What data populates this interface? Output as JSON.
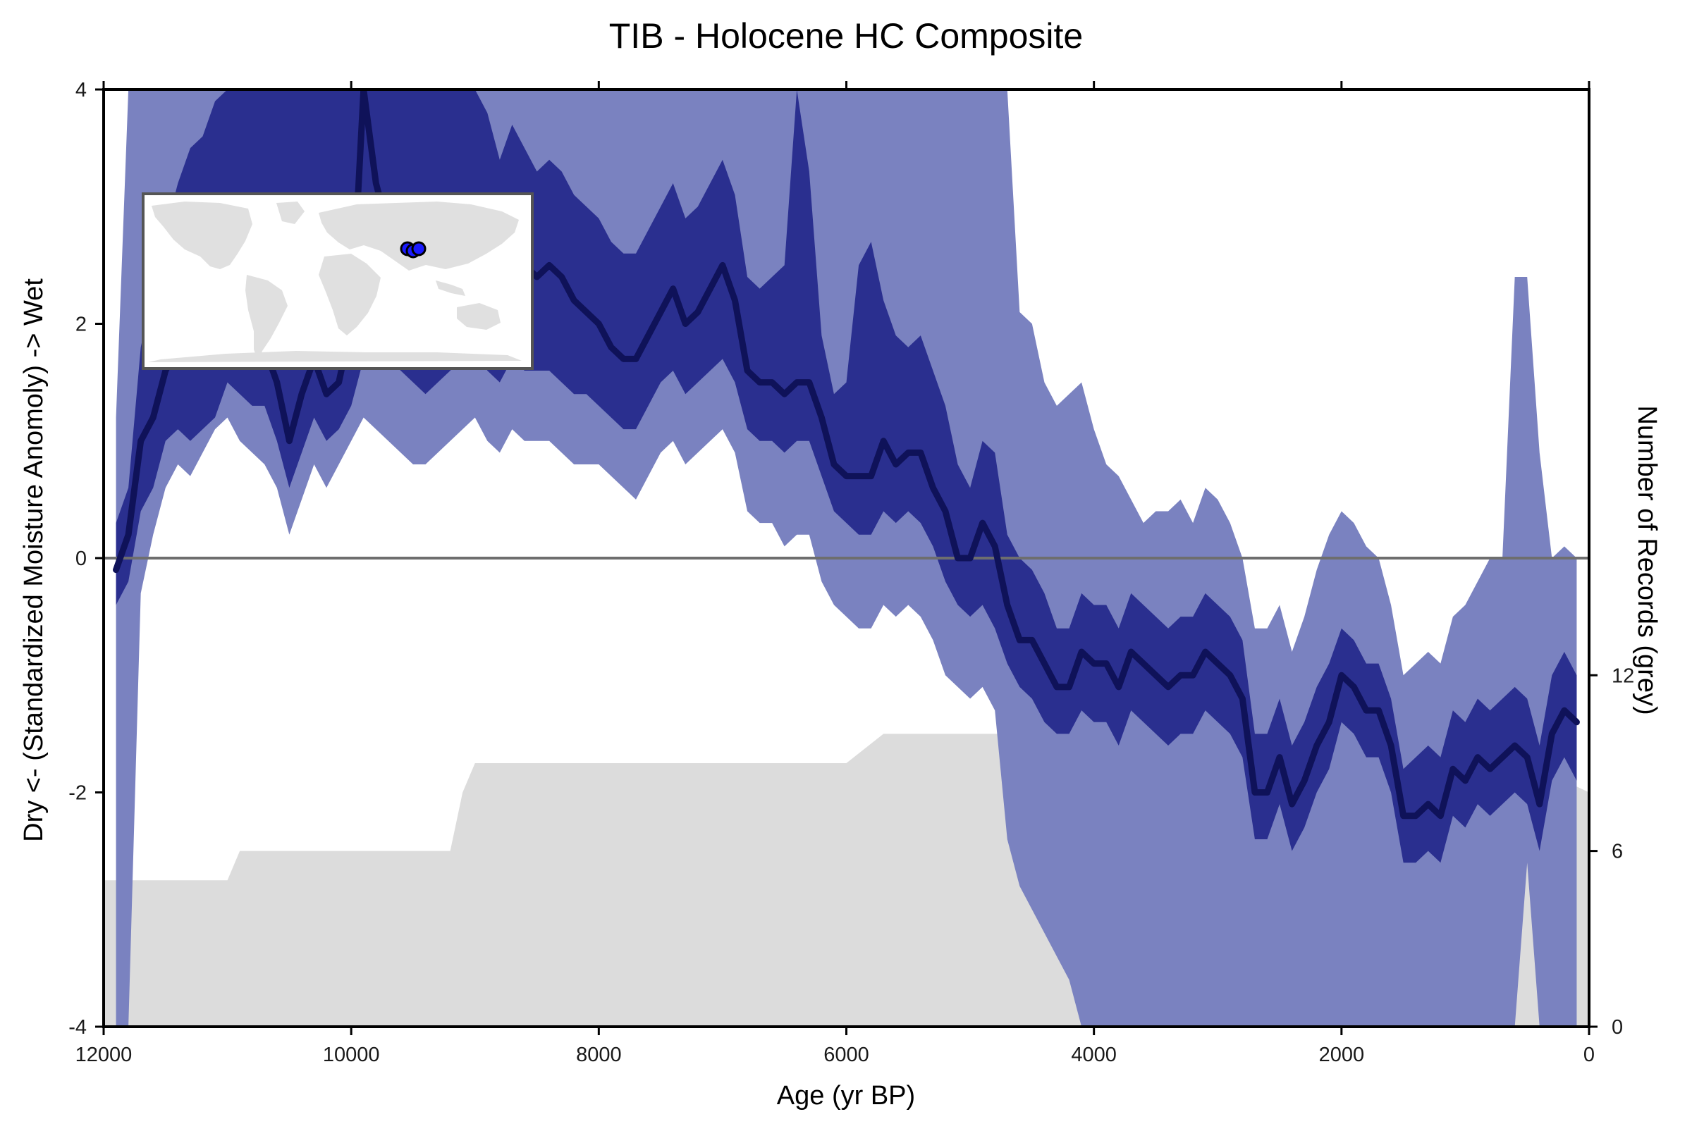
{
  "chart_data": {
    "type": "area",
    "title": "TIB - Holocene HC Composite",
    "xlabel": "Age (yr BP)",
    "ylabel": "Dry <- (Standardized Moisture Anomoly) -> Wet",
    "y2label": "Number of Records (grey)",
    "xlim": [
      12000,
      0
    ],
    "ylim": [
      -4,
      4
    ],
    "y2lim": [
      0,
      32
    ],
    "x_reversed": true,
    "x_ticks": [
      12000,
      10000,
      8000,
      6000,
      4000,
      2000,
      0
    ],
    "y_ticks": [
      -4,
      -2,
      0,
      2,
      4
    ],
    "y2_ticks": [
      0,
      6,
      12
    ],
    "zero_line": 0,
    "grid": false,
    "inset_map": {
      "position": "top-left",
      "site_count": 3,
      "site_color": "#1a1aff"
    },
    "colors": {
      "median": "#0f1259",
      "band_inner": "#2a2f8f",
      "band_outer": "#7a82c0",
      "records": "#dcdcdc",
      "zero_line": "#6e6e6e"
    },
    "records": {
      "name": "Number of Records (grey)",
      "x": [
        12000,
        11000,
        10900,
        9200,
        9100,
        9000,
        6000,
        5700,
        4000,
        3900,
        500,
        0
      ],
      "values": [
        5,
        5,
        6,
        6,
        8,
        9,
        9,
        10,
        10,
        9,
        9,
        8
      ]
    },
    "series": [
      {
        "name": "median",
        "x": [
          11900,
          11800,
          11700,
          11600,
          11500,
          11400,
          11300,
          11200,
          11100,
          11000,
          10900,
          10800,
          10700,
          10600,
          10500,
          10400,
          10300,
          10200,
          10100,
          10000,
          9900,
          9800,
          9700,
          9600,
          9500,
          9400,
          9300,
          9200,
          9100,
          9000,
          8900,
          8800,
          8700,
          8600,
          8500,
          8400,
          8300,
          8200,
          8100,
          8000,
          7900,
          7800,
          7700,
          7600,
          7500,
          7400,
          7300,
          7200,
          7100,
          7000,
          6900,
          6800,
          6700,
          6600,
          6500,
          6400,
          6300,
          6200,
          6100,
          6000,
          5900,
          5800,
          5700,
          5600,
          5500,
          5400,
          5300,
          5200,
          5100,
          5000,
          4900,
          4800,
          4700,
          4600,
          4500,
          4400,
          4300,
          4200,
          4100,
          4000,
          3900,
          3800,
          3700,
          3600,
          3500,
          3400,
          3300,
          3200,
          3100,
          3000,
          2900,
          2800,
          2700,
          2600,
          2500,
          2400,
          2300,
          2200,
          2100,
          2000,
          1900,
          1800,
          1700,
          1600,
          1500,
          1400,
          1300,
          1200,
          1100,
          1000,
          900,
          800,
          700,
          600,
          500,
          400,
          300,
          200,
          100
        ],
        "values": [
          -0.1,
          0.2,
          1.0,
          1.2,
          1.6,
          1.8,
          1.7,
          1.7,
          1.9,
          2.2,
          1.9,
          1.7,
          1.8,
          1.5,
          1.0,
          1.4,
          1.7,
          1.4,
          1.5,
          2.0,
          4.0,
          3.2,
          2.8,
          2.5,
          2.3,
          2.2,
          2.3,
          2.5,
          2.4,
          2.8,
          2.6,
          2.3,
          2.7,
          2.5,
          2.4,
          2.5,
          2.4,
          2.2,
          2.1,
          2.0,
          1.8,
          1.7,
          1.7,
          1.9,
          2.1,
          2.3,
          2.0,
          2.1,
          2.3,
          2.5,
          2.2,
          1.6,
          1.5,
          1.5,
          1.4,
          1.5,
          1.5,
          1.2,
          0.8,
          0.7,
          0.7,
          0.7,
          1.0,
          0.8,
          0.9,
          0.9,
          0.6,
          0.4,
          0.0,
          0.0,
          0.3,
          0.1,
          -0.4,
          -0.7,
          -0.7,
          -0.9,
          -1.1,
          -1.1,
          -0.8,
          -0.9,
          -0.9,
          -1.1,
          -0.8,
          -0.9,
          -1.0,
          -1.1,
          -1.0,
          -1.0,
          -0.8,
          -0.9,
          -1.0,
          -1.2,
          -2.0,
          -2.0,
          -1.7,
          -2.1,
          -1.9,
          -1.6,
          -1.4,
          -1.0,
          -1.1,
          -1.3,
          -1.3,
          -1.6,
          -2.2,
          -2.2,
          -2.1,
          -2.2,
          -1.8,
          -1.9,
          -1.7,
          -1.8,
          -1.7,
          -1.6,
          -1.7,
          -2.1,
          -1.5,
          -1.3,
          -1.4
        ]
      },
      {
        "name": "inner-band",
        "x": [
          11900,
          11800,
          11700,
          11600,
          11500,
          11400,
          11300,
          11200,
          11100,
          11000,
          10900,
          10800,
          10700,
          10600,
          10500,
          10400,
          10300,
          10200,
          10100,
          10000,
          9900,
          9800,
          9700,
          9600,
          9500,
          9400,
          9300,
          9200,
          9100,
          9000,
          8900,
          8800,
          8700,
          8600,
          8500,
          8400,
          8300,
          8200,
          8100,
          8000,
          7900,
          7800,
          7700,
          7600,
          7500,
          7400,
          7300,
          7200,
          7100,
          7000,
          6900,
          6800,
          6700,
          6600,
          6500,
          6400,
          6300,
          6200,
          6100,
          6000,
          5900,
          5800,
          5700,
          5600,
          5500,
          5400,
          5300,
          5200,
          5100,
          5000,
          4900,
          4800,
          4700,
          4600,
          4500,
          4400,
          4300,
          4200,
          4100,
          4000,
          3900,
          3800,
          3700,
          3600,
          3500,
          3400,
          3300,
          3200,
          3100,
          3000,
          2900,
          2800,
          2700,
          2600,
          2500,
          2400,
          2300,
          2200,
          2100,
          2000,
          1900,
          1800,
          1700,
          1600,
          1500,
          1400,
          1300,
          1200,
          1100,
          1000,
          900,
          800,
          700,
          600,
          500,
          400,
          300,
          200,
          100
        ],
        "lower": [
          -0.4,
          -0.2,
          0.4,
          0.6,
          1.0,
          1.1,
          1.0,
          1.1,
          1.2,
          1.5,
          1.4,
          1.3,
          1.3,
          1.0,
          0.6,
          0.9,
          1.2,
          1.0,
          1.1,
          1.3,
          1.7,
          1.8,
          1.7,
          1.6,
          1.5,
          1.4,
          1.5,
          1.6,
          1.7,
          1.8,
          1.6,
          1.5,
          1.7,
          1.6,
          1.6,
          1.6,
          1.5,
          1.4,
          1.4,
          1.3,
          1.2,
          1.1,
          1.1,
          1.3,
          1.5,
          1.6,
          1.4,
          1.5,
          1.6,
          1.7,
          1.5,
          1.1,
          1.0,
          1.0,
          0.9,
          1.0,
          1.0,
          0.7,
          0.4,
          0.3,
          0.2,
          0.2,
          0.4,
          0.3,
          0.4,
          0.3,
          0.1,
          -0.2,
          -0.4,
          -0.5,
          -0.4,
          -0.6,
          -0.9,
          -1.1,
          -1.2,
          -1.4,
          -1.5,
          -1.5,
          -1.3,
          -1.4,
          -1.4,
          -1.6,
          -1.3,
          -1.4,
          -1.5,
          -1.6,
          -1.5,
          -1.5,
          -1.3,
          -1.4,
          -1.5,
          -1.7,
          -2.4,
          -2.4,
          -2.1,
          -2.5,
          -2.3,
          -2.0,
          -1.8,
          -1.4,
          -1.5,
          -1.7,
          -1.7,
          -2.0,
          -2.6,
          -2.6,
          -2.5,
          -2.6,
          -2.2,
          -2.3,
          -2.1,
          -2.2,
          -2.1,
          -2.0,
          -2.1,
          -2.5,
          -1.9,
          -1.7,
          -1.9
        ],
        "upper": [
          0.3,
          0.6,
          1.8,
          2.3,
          2.8,
          3.2,
          3.5,
          3.6,
          3.9,
          4.0,
          4.0,
          4.0,
          4.0,
          4.0,
          4.0,
          4.0,
          4.0,
          4.0,
          4.0,
          4.0,
          4.0,
          4.0,
          4.0,
          4.0,
          4.0,
          4.0,
          4.0,
          4.0,
          4.0,
          4.0,
          3.8,
          3.4,
          3.7,
          3.5,
          3.3,
          3.4,
          3.3,
          3.1,
          3.0,
          2.9,
          2.7,
          2.6,
          2.6,
          2.8,
          3.0,
          3.2,
          2.9,
          3.0,
          3.2,
          3.4,
          3.1,
          2.4,
          2.3,
          2.4,
          2.5,
          4.0,
          3.3,
          1.9,
          1.4,
          1.5,
          2.5,
          2.7,
          2.2,
          1.9,
          1.8,
          1.9,
          1.6,
          1.3,
          0.8,
          0.6,
          1.0,
          0.9,
          0.2,
          0.0,
          -0.1,
          -0.3,
          -0.6,
          -0.6,
          -0.3,
          -0.4,
          -0.4,
          -0.6,
          -0.3,
          -0.4,
          -0.5,
          -0.6,
          -0.5,
          -0.5,
          -0.3,
          -0.4,
          -0.5,
          -0.7,
          -1.5,
          -1.5,
          -1.2,
          -1.6,
          -1.4,
          -1.1,
          -0.9,
          -0.6,
          -0.7,
          -0.9,
          -0.9,
          -1.2,
          -1.8,
          -1.7,
          -1.6,
          -1.7,
          -1.3,
          -1.4,
          -1.2,
          -1.3,
          -1.2,
          -1.1,
          -1.2,
          -1.6,
          -1.0,
          -0.8,
          -1.0
        ]
      },
      {
        "name": "outer-band",
        "x": [
          11900,
          11800,
          11700,
          11600,
          11500,
          11400,
          11300,
          11200,
          11100,
          11000,
          10900,
          10800,
          10700,
          10600,
          10500,
          10400,
          10300,
          10200,
          10100,
          10000,
          9900,
          9800,
          9700,
          9600,
          9500,
          9400,
          9300,
          9200,
          9100,
          9000,
          8900,
          8800,
          8700,
          8600,
          8500,
          8400,
          8300,
          8200,
          8100,
          8000,
          7900,
          7800,
          7700,
          7600,
          7500,
          7400,
          7300,
          7200,
          7100,
          7000,
          6900,
          6800,
          6700,
          6600,
          6500,
          6400,
          6300,
          6200,
          6100,
          6000,
          5900,
          5800,
          5700,
          5600,
          5500,
          5400,
          5300,
          5200,
          5100,
          5000,
          4900,
          4800,
          4700,
          4600,
          4500,
          4400,
          4300,
          4200,
          4100,
          4000,
          3900,
          3800,
          3700,
          3600,
          3500,
          3400,
          3300,
          3200,
          3100,
          3000,
          2900,
          2800,
          2700,
          2600,
          2500,
          2400,
          2300,
          2200,
          2100,
          2000,
          1900,
          1800,
          1700,
          1600,
          1500,
          1400,
          1300,
          1200,
          1100,
          1000,
          900,
          800,
          700,
          600,
          500,
          400,
          300,
          200,
          100
        ],
        "lower": [
          -4.0,
          -4.0,
          -0.3,
          0.2,
          0.6,
          0.8,
          0.7,
          0.9,
          1.1,
          1.2,
          1.0,
          0.9,
          0.8,
          0.6,
          0.2,
          0.5,
          0.8,
          0.6,
          0.8,
          1.0,
          1.2,
          1.1,
          1.0,
          0.9,
          0.8,
          0.8,
          0.9,
          1.0,
          1.1,
          1.2,
          1.0,
          0.9,
          1.1,
          1.0,
          1.0,
          1.0,
          0.9,
          0.8,
          0.8,
          0.8,
          0.7,
          0.6,
          0.5,
          0.7,
          0.9,
          1.0,
          0.8,
          0.9,
          1.0,
          1.1,
          0.9,
          0.4,
          0.3,
          0.3,
          0.1,
          0.2,
          0.2,
          -0.2,
          -0.4,
          -0.5,
          -0.6,
          -0.6,
          -0.4,
          -0.5,
          -0.4,
          -0.5,
          -0.7,
          -1.0,
          -1.1,
          -1.2,
          -1.1,
          -1.3,
          -2.4,
          -2.8,
          -3.0,
          -3.2,
          -3.4,
          -3.6,
          -4.0,
          -4.0,
          -4.0,
          -4.0,
          -4.0,
          -4.0,
          -4.0,
          -4.0,
          -4.0,
          -4.0,
          -4.0,
          -4.0,
          -4.0,
          -4.0,
          -4.0,
          -4.0,
          -4.0,
          -4.0,
          -4.0,
          -4.0,
          -4.0,
          -4.0,
          -4.0,
          -4.0,
          -4.0,
          -4.0,
          -4.0,
          -4.0,
          -4.0,
          -4.0,
          -4.0,
          -4.0,
          -4.0,
          -4.0,
          -4.0,
          -4.0,
          -2.6,
          -4.0,
          -4.0,
          -4.0,
          -4.0
        ],
        "upper": [
          1.2,
          4.0,
          4.0,
          4.0,
          4.0,
          4.0,
          4.0,
          4.0,
          4.0,
          4.0,
          4.0,
          4.0,
          4.0,
          4.0,
          4.0,
          4.0,
          4.0,
          4.0,
          4.0,
          4.0,
          4.0,
          4.0,
          4.0,
          4.0,
          4.0,
          4.0,
          4.0,
          4.0,
          4.0,
          4.0,
          4.0,
          4.0,
          4.0,
          4.0,
          4.0,
          4.0,
          4.0,
          4.0,
          4.0,
          4.0,
          4.0,
          4.0,
          4.0,
          4.0,
          4.0,
          4.0,
          4.0,
          4.0,
          4.0,
          4.0,
          4.0,
          4.0,
          4.0,
          4.0,
          4.0,
          4.0,
          4.0,
          4.0,
          4.0,
          4.0,
          4.0,
          4.0,
          4.0,
          4.0,
          4.0,
          4.0,
          4.0,
          4.0,
          4.0,
          4.0,
          4.0,
          4.0,
          4.0,
          2.1,
          2.0,
          1.5,
          1.3,
          1.4,
          1.5,
          1.1,
          0.8,
          0.7,
          0.5,
          0.3,
          0.4,
          0.4,
          0.5,
          0.3,
          0.6,
          0.5,
          0.3,
          0.0,
          -0.6,
          -0.6,
          -0.4,
          -0.8,
          -0.5,
          -0.1,
          0.2,
          0.4,
          0.3,
          0.1,
          0.0,
          -0.4,
          -1.0,
          -0.9,
          -0.8,
          -0.9,
          -0.5,
          -0.4,
          -0.2,
          0.0,
          0.0,
          2.4,
          2.4,
          0.9,
          0.0,
          0.1,
          0.0
        ]
      }
    ]
  }
}
